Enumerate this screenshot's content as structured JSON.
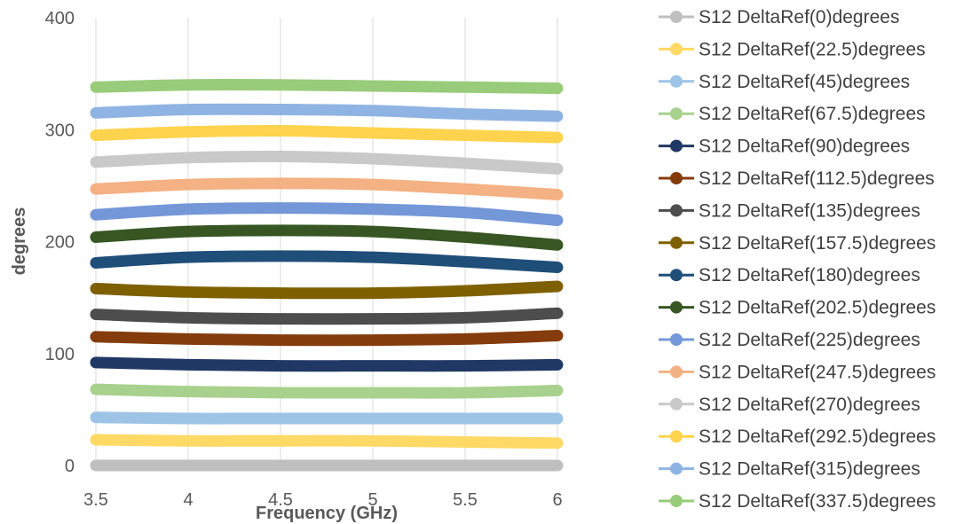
{
  "chart_data": {
    "type": "line",
    "title": "",
    "xlabel": "Frequency (GHz)",
    "ylabel": "degrees",
    "xlim": [
      3.5,
      6
    ],
    "ylim": [
      0,
      400
    ],
    "x_ticks": [
      "3.5",
      "4",
      "4.5",
      "5",
      "5.5",
      "6"
    ],
    "y_ticks": [
      "0",
      "100",
      "200",
      "300",
      "400"
    ],
    "grid": "vertical",
    "legend_position": "right",
    "x": [
      3.5,
      4.0,
      4.5,
      5.0,
      5.5,
      6.0
    ],
    "series": [
      {
        "name": "S12 DeltaRef(0)degrees",
        "color": "#bfbfbf",
        "values": [
          0,
          0,
          0,
          0,
          0,
          0
        ]
      },
      {
        "name": "S12 DeltaRef(22.5)degrees",
        "color": "#ffd966",
        "values": [
          23,
          22,
          22,
          22,
          21,
          20
        ]
      },
      {
        "name": "S12 DeltaRef(45)degrees",
        "color": "#9dc3e6",
        "values": [
          43,
          42,
          42,
          42,
          42,
          42
        ]
      },
      {
        "name": "S12 DeltaRef(67.5)degrees",
        "color": "#a9d18e",
        "values": [
          68,
          66,
          65,
          65,
          65,
          67
        ]
      },
      {
        "name": "S12 DeltaRef(90)degrees",
        "color": "#203864",
        "values": [
          92,
          90,
          89,
          89,
          89,
          90
        ]
      },
      {
        "name": "S12 DeltaRef(112.5)degrees",
        "color": "#843c0c",
        "values": [
          115,
          113,
          112,
          112,
          113,
          116
        ]
      },
      {
        "name": "S12 DeltaRef(135)degrees",
        "color": "#4d4d4d",
        "values": [
          135,
          132,
          131,
          131,
          132,
          136
        ]
      },
      {
        "name": "S12 DeltaRef(157.5)degrees",
        "color": "#7f6000",
        "values": [
          158,
          155,
          154,
          154,
          156,
          160
        ]
      },
      {
        "name": "S12 DeltaRef(180)degrees",
        "color": "#1f4e79",
        "values": [
          181,
          186,
          187,
          186,
          182,
          177
        ]
      },
      {
        "name": "S12 DeltaRef(202.5)degrees",
        "color": "#375623",
        "values": [
          204,
          209,
          210,
          209,
          204,
          197
        ]
      },
      {
        "name": "S12 DeltaRef(225)degrees",
        "color": "#7497d8",
        "values": [
          224,
          229,
          230,
          229,
          226,
          219
        ]
      },
      {
        "name": "S12 DeltaRef(247.5)degrees",
        "color": "#f4b183",
        "values": [
          247,
          251,
          252,
          251,
          247,
          242
        ]
      },
      {
        "name": "S12 DeltaRef(270)degrees",
        "color": "#c9c9c9",
        "values": [
          271,
          275,
          276,
          274,
          270,
          265
        ]
      },
      {
        "name": "S12 DeltaRef(292.5)degrees",
        "color": "#ffd34d",
        "values": [
          295,
          298,
          299,
          297,
          295,
          293
        ]
      },
      {
        "name": "S12 DeltaRef(315)degrees",
        "color": "#8fb4e3",
        "values": [
          315,
          318,
          318,
          317,
          314,
          312
        ]
      },
      {
        "name": "S12 DeltaRef(337.5)degrees",
        "color": "#98cc7a",
        "values": [
          338,
          340,
          340,
          339,
          338,
          337
        ]
      }
    ]
  }
}
